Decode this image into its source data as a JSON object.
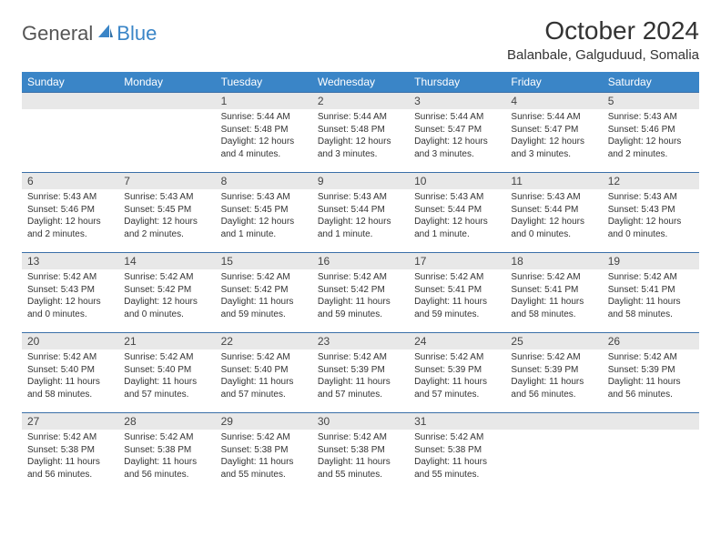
{
  "logo": {
    "general": "General",
    "blue": "Blue"
  },
  "header": {
    "month_title": "October 2024",
    "location": "Balanbale, Galguduud, Somalia"
  },
  "weekdays": [
    "Sunday",
    "Monday",
    "Tuesday",
    "Wednesday",
    "Thursday",
    "Friday",
    "Saturday"
  ],
  "colors": {
    "header_bg": "#3a85c7",
    "header_text": "#ffffff",
    "daynum_bg": "#e8e8e8",
    "row_border": "#3a6fa8",
    "page_bg": "#ffffff",
    "text": "#333333",
    "logo_general": "#555555",
    "logo_blue": "#3a85c7"
  },
  "typography": {
    "title_pt": 28,
    "location_pt": 15,
    "weekday_pt": 12,
    "daynum_pt": 12,
    "body_pt": 10
  },
  "weeks": [
    [
      {
        "num": "",
        "sunrise": "",
        "sunset": "",
        "daylight": ""
      },
      {
        "num": "",
        "sunrise": "",
        "sunset": "",
        "daylight": ""
      },
      {
        "num": "1",
        "sunrise": "Sunrise: 5:44 AM",
        "sunset": "Sunset: 5:48 PM",
        "daylight": "Daylight: 12 hours and 4 minutes."
      },
      {
        "num": "2",
        "sunrise": "Sunrise: 5:44 AM",
        "sunset": "Sunset: 5:48 PM",
        "daylight": "Daylight: 12 hours and 3 minutes."
      },
      {
        "num": "3",
        "sunrise": "Sunrise: 5:44 AM",
        "sunset": "Sunset: 5:47 PM",
        "daylight": "Daylight: 12 hours and 3 minutes."
      },
      {
        "num": "4",
        "sunrise": "Sunrise: 5:44 AM",
        "sunset": "Sunset: 5:47 PM",
        "daylight": "Daylight: 12 hours and 3 minutes."
      },
      {
        "num": "5",
        "sunrise": "Sunrise: 5:43 AM",
        "sunset": "Sunset: 5:46 PM",
        "daylight": "Daylight: 12 hours and 2 minutes."
      }
    ],
    [
      {
        "num": "6",
        "sunrise": "Sunrise: 5:43 AM",
        "sunset": "Sunset: 5:46 PM",
        "daylight": "Daylight: 12 hours and 2 minutes."
      },
      {
        "num": "7",
        "sunrise": "Sunrise: 5:43 AM",
        "sunset": "Sunset: 5:45 PM",
        "daylight": "Daylight: 12 hours and 2 minutes."
      },
      {
        "num": "8",
        "sunrise": "Sunrise: 5:43 AM",
        "sunset": "Sunset: 5:45 PM",
        "daylight": "Daylight: 12 hours and 1 minute."
      },
      {
        "num": "9",
        "sunrise": "Sunrise: 5:43 AM",
        "sunset": "Sunset: 5:44 PM",
        "daylight": "Daylight: 12 hours and 1 minute."
      },
      {
        "num": "10",
        "sunrise": "Sunrise: 5:43 AM",
        "sunset": "Sunset: 5:44 PM",
        "daylight": "Daylight: 12 hours and 1 minute."
      },
      {
        "num": "11",
        "sunrise": "Sunrise: 5:43 AM",
        "sunset": "Sunset: 5:44 PM",
        "daylight": "Daylight: 12 hours and 0 minutes."
      },
      {
        "num": "12",
        "sunrise": "Sunrise: 5:43 AM",
        "sunset": "Sunset: 5:43 PM",
        "daylight": "Daylight: 12 hours and 0 minutes."
      }
    ],
    [
      {
        "num": "13",
        "sunrise": "Sunrise: 5:42 AM",
        "sunset": "Sunset: 5:43 PM",
        "daylight": "Daylight: 12 hours and 0 minutes."
      },
      {
        "num": "14",
        "sunrise": "Sunrise: 5:42 AM",
        "sunset": "Sunset: 5:42 PM",
        "daylight": "Daylight: 12 hours and 0 minutes."
      },
      {
        "num": "15",
        "sunrise": "Sunrise: 5:42 AM",
        "sunset": "Sunset: 5:42 PM",
        "daylight": "Daylight: 11 hours and 59 minutes."
      },
      {
        "num": "16",
        "sunrise": "Sunrise: 5:42 AM",
        "sunset": "Sunset: 5:42 PM",
        "daylight": "Daylight: 11 hours and 59 minutes."
      },
      {
        "num": "17",
        "sunrise": "Sunrise: 5:42 AM",
        "sunset": "Sunset: 5:41 PM",
        "daylight": "Daylight: 11 hours and 59 minutes."
      },
      {
        "num": "18",
        "sunrise": "Sunrise: 5:42 AM",
        "sunset": "Sunset: 5:41 PM",
        "daylight": "Daylight: 11 hours and 58 minutes."
      },
      {
        "num": "19",
        "sunrise": "Sunrise: 5:42 AM",
        "sunset": "Sunset: 5:41 PM",
        "daylight": "Daylight: 11 hours and 58 minutes."
      }
    ],
    [
      {
        "num": "20",
        "sunrise": "Sunrise: 5:42 AM",
        "sunset": "Sunset: 5:40 PM",
        "daylight": "Daylight: 11 hours and 58 minutes."
      },
      {
        "num": "21",
        "sunrise": "Sunrise: 5:42 AM",
        "sunset": "Sunset: 5:40 PM",
        "daylight": "Daylight: 11 hours and 57 minutes."
      },
      {
        "num": "22",
        "sunrise": "Sunrise: 5:42 AM",
        "sunset": "Sunset: 5:40 PM",
        "daylight": "Daylight: 11 hours and 57 minutes."
      },
      {
        "num": "23",
        "sunrise": "Sunrise: 5:42 AM",
        "sunset": "Sunset: 5:39 PM",
        "daylight": "Daylight: 11 hours and 57 minutes."
      },
      {
        "num": "24",
        "sunrise": "Sunrise: 5:42 AM",
        "sunset": "Sunset: 5:39 PM",
        "daylight": "Daylight: 11 hours and 57 minutes."
      },
      {
        "num": "25",
        "sunrise": "Sunrise: 5:42 AM",
        "sunset": "Sunset: 5:39 PM",
        "daylight": "Daylight: 11 hours and 56 minutes."
      },
      {
        "num": "26",
        "sunrise": "Sunrise: 5:42 AM",
        "sunset": "Sunset: 5:39 PM",
        "daylight": "Daylight: 11 hours and 56 minutes."
      }
    ],
    [
      {
        "num": "27",
        "sunrise": "Sunrise: 5:42 AM",
        "sunset": "Sunset: 5:38 PM",
        "daylight": "Daylight: 11 hours and 56 minutes."
      },
      {
        "num": "28",
        "sunrise": "Sunrise: 5:42 AM",
        "sunset": "Sunset: 5:38 PM",
        "daylight": "Daylight: 11 hours and 56 minutes."
      },
      {
        "num": "29",
        "sunrise": "Sunrise: 5:42 AM",
        "sunset": "Sunset: 5:38 PM",
        "daylight": "Daylight: 11 hours and 55 minutes."
      },
      {
        "num": "30",
        "sunrise": "Sunrise: 5:42 AM",
        "sunset": "Sunset: 5:38 PM",
        "daylight": "Daylight: 11 hours and 55 minutes."
      },
      {
        "num": "31",
        "sunrise": "Sunrise: 5:42 AM",
        "sunset": "Sunset: 5:38 PM",
        "daylight": "Daylight: 11 hours and 55 minutes."
      },
      {
        "num": "",
        "sunrise": "",
        "sunset": "",
        "daylight": ""
      },
      {
        "num": "",
        "sunrise": "",
        "sunset": "",
        "daylight": ""
      }
    ]
  ]
}
